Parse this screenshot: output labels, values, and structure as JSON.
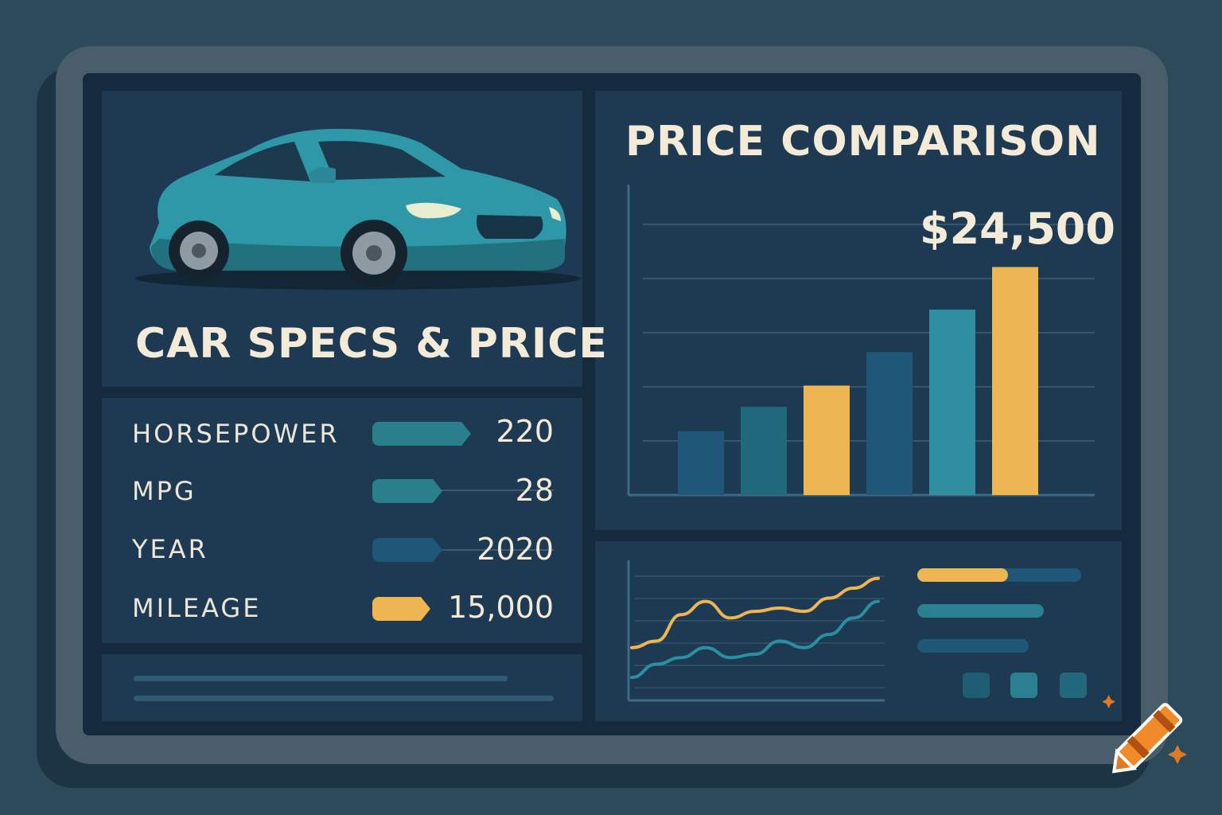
{
  "colors": {
    "background": "#2c4a59",
    "panel": "#1e3a52",
    "teal": "#2a7f8c",
    "teal_light": "#3a9aaa",
    "navy": "#1f5779",
    "accent": "#eeb553",
    "text": "#f3ead7"
  },
  "car_panel": {
    "title": "CAR SPECS & PRICE",
    "image_icon": "sedan-car-icon"
  },
  "specs": [
    {
      "label": "HORSEPOWER",
      "value": "220",
      "bar_color": "#2a7f8c",
      "bar_fraction": 1.0
    },
    {
      "label": "MPG",
      "value": "28",
      "bar_color": "#2a7f8c",
      "bar_fraction": 0.71
    },
    {
      "label": "YEAR",
      "value": "2020",
      "bar_color": "#1f5779",
      "bar_fraction": 0.71
    },
    {
      "label": "MILEAGE",
      "value": "15,000",
      "bar_color": "#eeb553",
      "bar_fraction": 0.59
    }
  ],
  "price_panel": {
    "title": "PRICE COMPARISON",
    "highlight_value": "$24,500"
  },
  "chart_data": [
    {
      "type": "bar",
      "categories": [
        "",
        "",
        "",
        "",
        "",
        ""
      ],
      "values": [
        21,
        29,
        36,
        47,
        61,
        75
      ],
      "colors": [
        "#1f5779",
        "#216a7d",
        "#eeb553",
        "#1f5779",
        "#2f8ea0",
        "#eeb553"
      ],
      "ylim": [
        0,
        100
      ],
      "grid": true,
      "annotations": [
        "$24,500"
      ]
    },
    {
      "type": "line",
      "x": [
        0,
        1,
        2,
        3,
        4,
        5,
        6,
        7,
        8,
        9,
        10
      ],
      "series": [
        {
          "values": [
            30,
            34,
            50,
            58,
            48,
            52,
            54,
            52,
            60,
            66,
            72
          ],
          "color": "#eeb553"
        },
        {
          "values": [
            12,
            20,
            24,
            30,
            24,
            26,
            34,
            30,
            38,
            48,
            58
          ],
          "color": "#2a8fa0"
        }
      ],
      "ylim": [
        0,
        80
      ],
      "grid": true
    }
  ]
}
